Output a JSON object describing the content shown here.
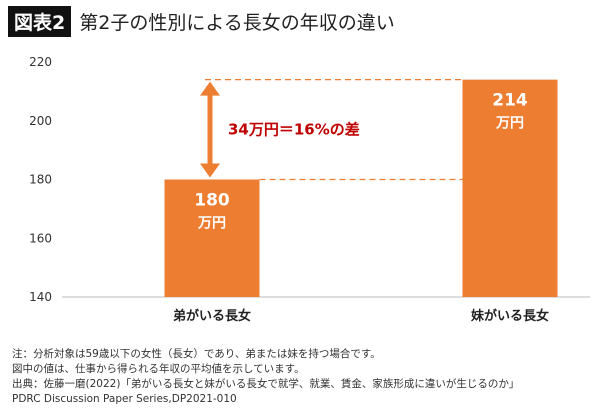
{
  "header": {
    "badge": "図表2",
    "title": "第2子の性別による長女の年収の違い"
  },
  "chart_data": {
    "type": "bar",
    "title": "第2子の性別による長女の年収の違い",
    "categories": [
      "弟がいる長女",
      "妹がいる長女"
    ],
    "values": [
      180,
      214
    ],
    "data_labels": [
      [
        "180",
        "万円"
      ],
      [
        "214",
        "万円"
      ]
    ],
    "unit": "万円",
    "ylim": [
      140,
      220
    ],
    "yticks": [
      140,
      160,
      180,
      200,
      220
    ],
    "grid": false,
    "bar_color": "#ED7D31",
    "annotation": {
      "text": "34万円＝16%の差",
      "color": "#C00000",
      "arrow_color": "#ED7D31",
      "from": 180,
      "to": 214
    }
  },
  "notes": [
    "注：分析対象は59歳以下の女性（長女）であり、弟または妹を持つ場合です。",
    "図中の値は、仕事から得られる年収の平均値を示しています。",
    "出典：佐藤一磨(2022)「弟がいる長女と妹がいる長女で就学、就業、賃金、家族形成に違いが生じるのか」",
    "PDRC  Discussion  Paper  Series,DP2021-010"
  ]
}
